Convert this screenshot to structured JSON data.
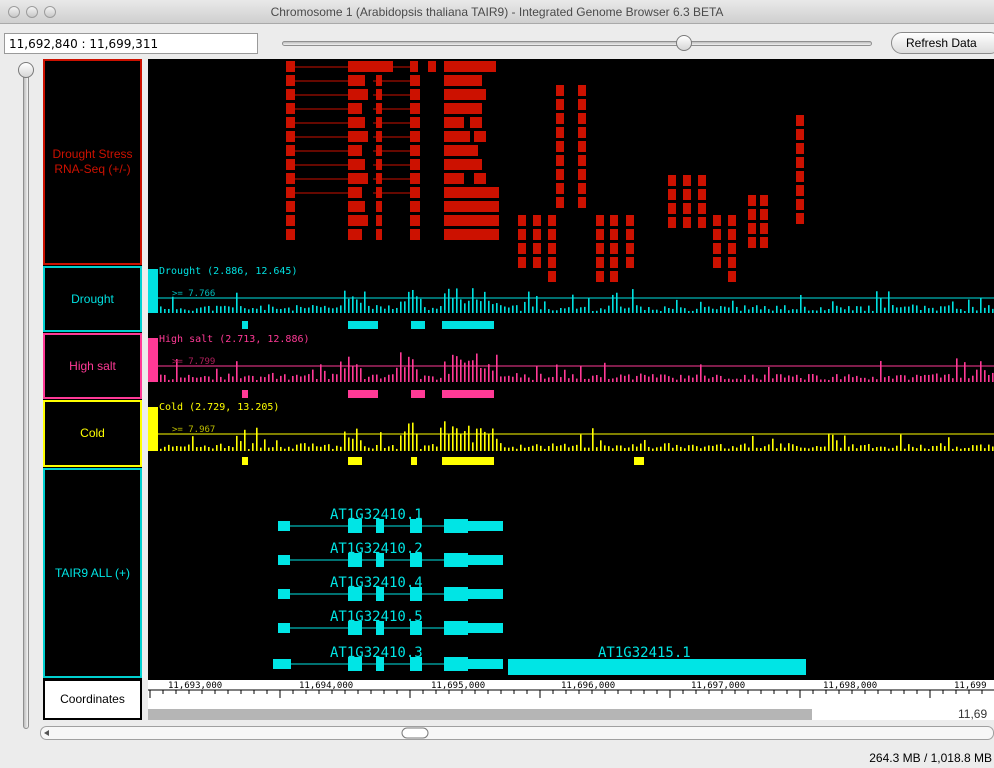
{
  "window": {
    "title": "Chromosome 1  (Arabidopsis thaliana TAIR9) - Integrated Genome Browser 6.3 BETA"
  },
  "toolbar": {
    "coordinates": "11,692,840 : 11,699,311",
    "refresh_label": "Refresh Data"
  },
  "tracks": {
    "drought_stress": {
      "label": "Drought Stress RNA-Seq (+/-)",
      "color": "#cc1100"
    },
    "drought": {
      "label": "Drought",
      "summary": "Drought (2.886, 12.645)",
      "threshold": ">= 7.766",
      "color": "#00e0e0"
    },
    "high_salt": {
      "label": "High salt",
      "summary": "High salt (2.713, 12.886)",
      "threshold": ">= 7.799",
      "color": "#ff3a96"
    },
    "cold": {
      "label": "Cold",
      "summary": "Cold (2.729, 13.205)",
      "threshold": ">= 7.967",
      "color": "#ffff00"
    },
    "tair9": {
      "label": "TAIR9 ALL (+)",
      "color": "#00e5e5",
      "genes": [
        "AT1G32410.1",
        "AT1G32410.2",
        "AT1G32410.4",
        "AT1G32410.5",
        "AT1G32410.3",
        "AT1G32415.1"
      ]
    },
    "coordinates": {
      "label": "Coordinates"
    }
  },
  "axis": {
    "ticks": [
      "11,693,000",
      "11,694,000",
      "11,695,000",
      "11,696,000",
      "11,697,000",
      "11,698,000",
      "11,699"
    ],
    "right_readout": "11,69"
  },
  "status": {
    "memory": "264.3 MB / 1,018.8 MB"
  },
  "icons": {
    "close": "traffic-light-close",
    "minimize": "traffic-light-minimize",
    "zoom": "traffic-light-zoom",
    "scroll_left": "scroll-left-arrow"
  }
}
